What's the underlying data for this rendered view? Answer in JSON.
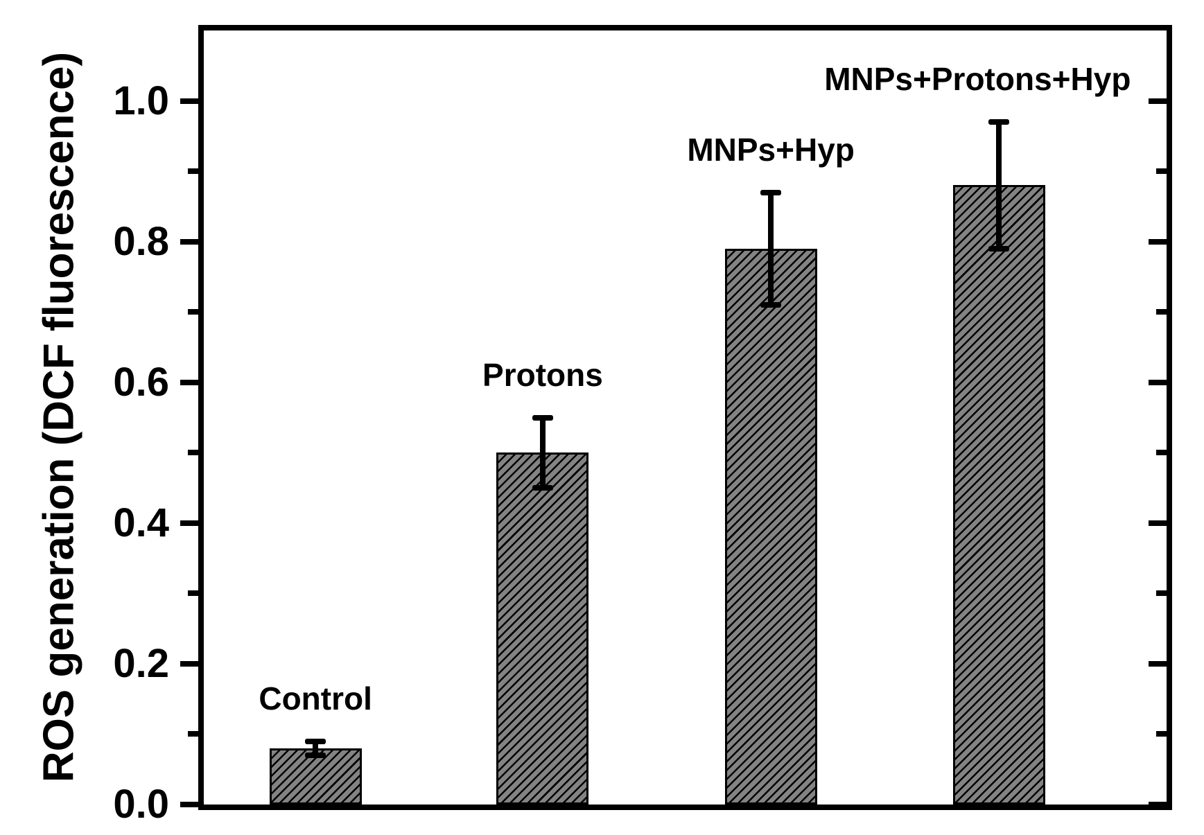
{
  "figure": {
    "background_color": "#ffffff",
    "text_color": "#000000"
  },
  "chart_data": {
    "type": "bar",
    "title": "",
    "xlabel": "",
    "ylabel": "ROS generation (DCF fluorescence)",
    "categories": [
      "Control",
      "Protons",
      "MNPs+Hyp",
      "MNPs+Protons+Hyp"
    ],
    "values": [
      0.08,
      0.5,
      0.79,
      0.88
    ],
    "errors": [
      0.01,
      0.05,
      0.08,
      0.09
    ],
    "category_label_position": "above-error-bar",
    "ylim": [
      0.0,
      1.1
    ],
    "yticks_major": [
      0.0,
      0.2,
      0.4,
      0.6,
      0.8,
      1.0
    ],
    "ytick_labels": [
      "0.0",
      "0.2",
      "0.4",
      "0.6",
      "0.8",
      "1.0"
    ],
    "yticks_minor": [
      0.1,
      0.3,
      0.5,
      0.7,
      0.9
    ],
    "grid": false,
    "legend": null,
    "x_axis_tick_labels": "none",
    "bar_fill_color": "#838383",
    "bar_hatch": "forward-diagonal-black",
    "bar_edge_color": "#000000",
    "error_bar_color": "#000000",
    "axis_color": "#000000"
  }
}
